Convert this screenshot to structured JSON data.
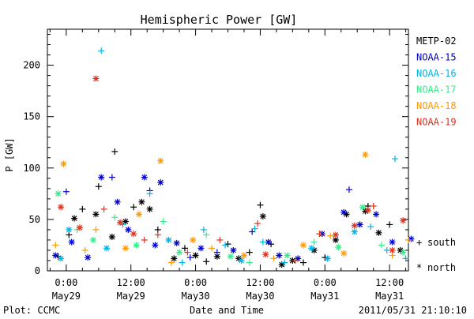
{
  "footer": {
    "left": "Plot: CCMC",
    "right": "2011/05/31 21:10:10"
  },
  "legend_markers": {
    "south": "south",
    "north": "north"
  },
  "chart_data": {
    "type": "scatter",
    "title": "Hemispheric Power [GW]",
    "xlabel": "Date and Time",
    "ylabel": "P [GW]",
    "ylim": [
      0,
      235
    ],
    "xlim_hours": [
      -3.5,
      63.5
    ],
    "grid": false,
    "legend_position": "right",
    "y_ticks": [
      0,
      50,
      100,
      150,
      200
    ],
    "x_ticks": [
      {
        "line1": "0:00",
        "line2": "May29",
        "hour": 0
      },
      {
        "line1": "12:00",
        "line2": "May29",
        "hour": 12
      },
      {
        "line1": "0:00",
        "line2": "May30",
        "hour": 24
      },
      {
        "line1": "12:00",
        "line2": "May30",
        "hour": 36
      },
      {
        "line1": "0:00",
        "line2": "May31",
        "hour": 48
      },
      {
        "line1": "12:00",
        "line2": "May31",
        "hour": 60
      }
    ],
    "series": [
      {
        "name": "METP-02",
        "color": "#000000",
        "points": [
          {
            "x": -1.5,
            "y": 14,
            "m": "+"
          },
          {
            "x": 0.5,
            "y": 35,
            "m": "+"
          },
          {
            "x": 1.5,
            "y": 51,
            "m": "*"
          },
          {
            "x": 3,
            "y": 60,
            "m": "+"
          },
          {
            "x": 5.5,
            "y": 55,
            "m": "*"
          },
          {
            "x": 6,
            "y": 82,
            "m": "+"
          },
          {
            "x": 9,
            "y": 116,
            "m": "+"
          },
          {
            "x": 11,
            "y": 48,
            "m": "*"
          },
          {
            "x": 12.5,
            "y": 62,
            "m": "+"
          },
          {
            "x": 14,
            "y": 67,
            "m": "*"
          },
          {
            "x": 15.5,
            "y": 60,
            "m": "*"
          },
          {
            "x": 17,
            "y": 40,
            "m": "+"
          },
          {
            "x": 8.5,
            "y": 33,
            "m": "*"
          },
          {
            "x": 20,
            "y": 12,
            "m": "*"
          },
          {
            "x": 22,
            "y": 22,
            "m": "+"
          },
          {
            "x": 24,
            "y": 15,
            "m": "*"
          },
          {
            "x": 26,
            "y": 9,
            "m": "+"
          },
          {
            "x": 28,
            "y": 14,
            "m": "*"
          },
          {
            "x": 30,
            "y": 26,
            "m": "+"
          },
          {
            "x": 32,
            "y": 12,
            "m": "*"
          },
          {
            "x": 34,
            "y": 18,
            "m": "+"
          },
          {
            "x": 36,
            "y": 64,
            "m": "+"
          },
          {
            "x": 36.5,
            "y": 53,
            "m": "*"
          },
          {
            "x": 38,
            "y": 26,
            "m": "+"
          },
          {
            "x": 40,
            "y": 6,
            "m": "*"
          },
          {
            "x": 42,
            "y": 10,
            "m": "*"
          },
          {
            "x": 44,
            "y": 8,
            "m": "+"
          },
          {
            "x": 46,
            "y": 20,
            "m": "*"
          },
          {
            "x": 48,
            "y": 13,
            "m": "+"
          },
          {
            "x": 50,
            "y": 30,
            "m": "*"
          },
          {
            "x": 52,
            "y": 55,
            "m": "*"
          },
          {
            "x": 55.5,
            "y": 58,
            "m": "*"
          },
          {
            "x": 56,
            "y": 63,
            "m": "+"
          },
          {
            "x": 58,
            "y": 37,
            "m": "*"
          },
          {
            "x": 60,
            "y": 45,
            "m": "+"
          },
          {
            "x": 62,
            "y": 20,
            "m": "*"
          }
        ]
      },
      {
        "name": "NOAA-15",
        "color": "#0000cc",
        "points": [
          {
            "x": -2,
            "y": 15,
            "m": "*"
          },
          {
            "x": 0,
            "y": 77,
            "m": "+"
          },
          {
            "x": 1,
            "y": 28,
            "m": "*"
          },
          {
            "x": 4,
            "y": 13,
            "m": "*"
          },
          {
            "x": 6.5,
            "y": 91,
            "m": "*"
          },
          {
            "x": 8.5,
            "y": 91,
            "m": "+"
          },
          {
            "x": 9.5,
            "y": 67,
            "m": "*"
          },
          {
            "x": 11.5,
            "y": 40,
            "m": "*"
          },
          {
            "x": 14.5,
            "y": 91,
            "m": "*"
          },
          {
            "x": 15.5,
            "y": 78,
            "m": "+"
          },
          {
            "x": 17.5,
            "y": 86,
            "m": "*"
          },
          {
            "x": 16.5,
            "y": 25,
            "m": "*"
          },
          {
            "x": 20.5,
            "y": 27,
            "m": "*"
          },
          {
            "x": 23,
            "y": 13,
            "m": "+"
          },
          {
            "x": 25,
            "y": 22,
            "m": "*"
          },
          {
            "x": 28,
            "y": 18,
            "m": "+"
          },
          {
            "x": 31,
            "y": 20,
            "m": "*"
          },
          {
            "x": 34.5,
            "y": 38,
            "m": "+"
          },
          {
            "x": 37.5,
            "y": 28,
            "m": "*"
          },
          {
            "x": 39.5,
            "y": 15,
            "m": "*"
          },
          {
            "x": 43,
            "y": 12,
            "m": "*"
          },
          {
            "x": 47.5,
            "y": 36,
            "m": "*"
          },
          {
            "x": 51.5,
            "y": 57,
            "m": "*"
          },
          {
            "x": 52.5,
            "y": 79,
            "m": "+"
          },
          {
            "x": 54.5,
            "y": 45,
            "m": "*"
          },
          {
            "x": 57.5,
            "y": 55,
            "m": "*"
          },
          {
            "x": 60.5,
            "y": 28,
            "m": "*"
          },
          {
            "x": 64,
            "y": 31,
            "m": "*"
          }
        ]
      },
      {
        "name": "NOAA-16",
        "color": "#00b4e6",
        "points": [
          {
            "x": -1,
            "y": 12,
            "m": "*"
          },
          {
            "x": 0.5,
            "y": 40,
            "m": "*"
          },
          {
            "x": 6.5,
            "y": 214,
            "m": "+"
          },
          {
            "x": 7.5,
            "y": 22,
            "m": "*"
          },
          {
            "x": 10.5,
            "y": 45,
            "m": "+"
          },
          {
            "x": 15.5,
            "y": 75,
            "m": "+"
          },
          {
            "x": 19,
            "y": 30,
            "m": "*"
          },
          {
            "x": 21.5,
            "y": 8,
            "m": "+"
          },
          {
            "x": 25.5,
            "y": 40,
            "m": "+"
          },
          {
            "x": 29.5,
            "y": 25,
            "m": "+"
          },
          {
            "x": 32.5,
            "y": 10,
            "m": "*"
          },
          {
            "x": 35,
            "y": 41,
            "m": "+"
          },
          {
            "x": 36.5,
            "y": 28,
            "m": "+"
          },
          {
            "x": 40.5,
            "y": 8,
            "m": "+"
          },
          {
            "x": 45.5,
            "y": 22,
            "m": "*"
          },
          {
            "x": 48.5,
            "y": 12,
            "m": "*"
          },
          {
            "x": 53.5,
            "y": 38,
            "m": "*"
          },
          {
            "x": 56.5,
            "y": 43,
            "m": "+"
          },
          {
            "x": 59.5,
            "y": 20,
            "m": "+"
          },
          {
            "x": 61,
            "y": 109,
            "m": "+"
          },
          {
            "x": 63,
            "y": 12,
            "m": "+"
          }
        ]
      },
      {
        "name": "NOAA-17",
        "color": "#33ee88",
        "points": [
          {
            "x": -1.5,
            "y": 75,
            "m": "*"
          },
          {
            "x": 2,
            "y": 40,
            "m": "+"
          },
          {
            "x": 5,
            "y": 30,
            "m": "*"
          },
          {
            "x": 9,
            "y": 52,
            "m": "+"
          },
          {
            "x": 13,
            "y": 25,
            "m": "*"
          },
          {
            "x": 18,
            "y": 48,
            "m": "+"
          },
          {
            "x": 21,
            "y": 18,
            "m": "*"
          },
          {
            "x": 26,
            "y": 35,
            "m": "+"
          },
          {
            "x": 30.5,
            "y": 14,
            "m": "*"
          },
          {
            "x": 34,
            "y": 8,
            "m": "+"
          },
          {
            "x": 41,
            "y": 15,
            "m": "*"
          },
          {
            "x": 46,
            "y": 28,
            "m": "+"
          },
          {
            "x": 50.5,
            "y": 23,
            "m": "*"
          },
          {
            "x": 55,
            "y": 62,
            "m": "*"
          },
          {
            "x": 58.5,
            "y": 25,
            "m": "+"
          },
          {
            "x": 62.5,
            "y": 18,
            "m": "*"
          }
        ]
      },
      {
        "name": "NOAA-18",
        "color": "#ff9900",
        "points": [
          {
            "x": -2,
            "y": 25,
            "m": "+"
          },
          {
            "x": -0.5,
            "y": 104,
            "m": "*"
          },
          {
            "x": 3.5,
            "y": 20,
            "m": "+"
          },
          {
            "x": 5.5,
            "y": 40,
            "m": "+"
          },
          {
            "x": 11,
            "y": 22,
            "m": "*"
          },
          {
            "x": 13.5,
            "y": 55,
            "m": "*"
          },
          {
            "x": 17.5,
            "y": 107,
            "m": "*"
          },
          {
            "x": 19.5,
            "y": 8,
            "m": "+"
          },
          {
            "x": 23.5,
            "y": 30,
            "m": "*"
          },
          {
            "x": 27,
            "y": 22,
            "m": "+"
          },
          {
            "x": 33,
            "y": 15,
            "m": "*"
          },
          {
            "x": 38.5,
            "y": 12,
            "m": "+"
          },
          {
            "x": 44,
            "y": 25,
            "m": "*"
          },
          {
            "x": 49,
            "y": 34,
            "m": "+"
          },
          {
            "x": 51.5,
            "y": 17,
            "m": "*"
          },
          {
            "x": 55.5,
            "y": 113,
            "m": "*"
          },
          {
            "x": 60.5,
            "y": 15,
            "m": "+"
          },
          {
            "x": 63.5,
            "y": 30,
            "m": "+"
          }
        ]
      },
      {
        "name": "NOAA-19",
        "color": "#e0301e",
        "points": [
          {
            "x": -1,
            "y": 62,
            "m": "*"
          },
          {
            "x": 2.5,
            "y": 42,
            "m": "*"
          },
          {
            "x": 5.5,
            "y": 187,
            "m": "*"
          },
          {
            "x": 7,
            "y": 60,
            "m": "+"
          },
          {
            "x": 10,
            "y": 47,
            "m": "*"
          },
          {
            "x": 12.5,
            "y": 36,
            "m": "*"
          },
          {
            "x": 14.5,
            "y": 30,
            "m": "+"
          },
          {
            "x": 17,
            "y": 35,
            "m": "+"
          },
          {
            "x": 22.5,
            "y": 18,
            "m": "+"
          },
          {
            "x": 28.5,
            "y": 30,
            "m": "+"
          },
          {
            "x": 35.5,
            "y": 46,
            "m": "+"
          },
          {
            "x": 37,
            "y": 16,
            "m": "*"
          },
          {
            "x": 42.5,
            "y": 10,
            "m": "+"
          },
          {
            "x": 47,
            "y": 36,
            "m": "+"
          },
          {
            "x": 50,
            "y": 35,
            "m": "*"
          },
          {
            "x": 53.5,
            "y": 44,
            "m": "*"
          },
          {
            "x": 56,
            "y": 59,
            "m": "*"
          },
          {
            "x": 57,
            "y": 63,
            "m": "+"
          },
          {
            "x": 60.5,
            "y": 20,
            "m": "*"
          },
          {
            "x": 62.5,
            "y": 49,
            "m": "*"
          }
        ]
      }
    ]
  }
}
